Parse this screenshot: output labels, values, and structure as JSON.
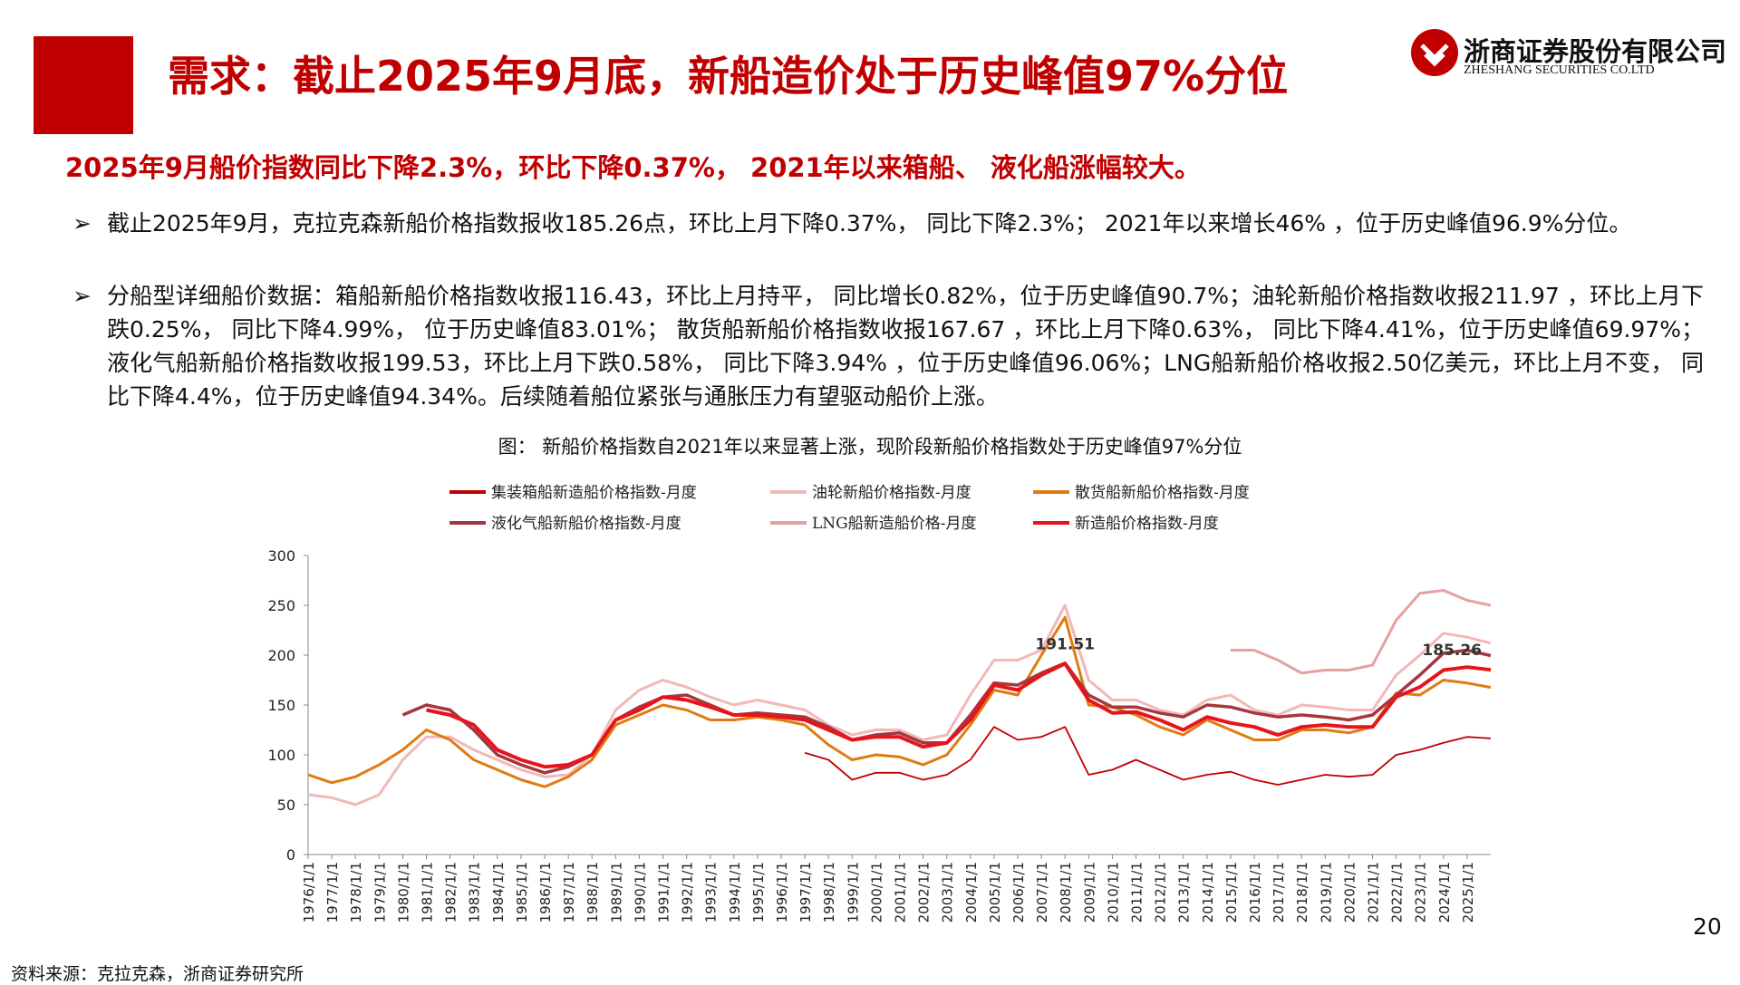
{
  "header": {
    "title": "需求：截止2025年9月底，新船造价处于历史峰值97%分位",
    "logo_cn": "浙商证券股份有限公司",
    "logo_en": "ZHESHANG SECURITIES CO.LTD"
  },
  "subtitle": "2025年9月船价指数同比下降2.3%，环比下降0.37%， 2021年以来箱船、 液化船涨幅较大。",
  "bullets": [
    "截止2025年9月，克拉克森新船价格指数报收185.26点，环比上月下降0.37%， 同比下降2.3%； 2021年以来增长46% ，位于历史峰值96.9%分位。",
    "分船型详细船价数据：箱船新船价格指数收报116.43，环比上月持平， 同比增长0.82%，位于历史峰值90.7%；油轮新船价格指数收报211.97 ，环比上月下跌0.25%， 同比下降4.99%， 位于历史峰值83.01%； 散货船新船价格指数收报167.67 ，环比上月下降0.63%， 同比下降4.41%，位于历史峰值69.97%；液化气船新船价格指数收报199.53，环比上月下跌0.58%， 同比下降3.94% ，位于历史峰值96.06%；LNG船新船价格收报2.50亿美元，环比上月不变， 同比下降4.4%，位于历史峰值94.34%。后续随着船位紧张与通胀压力有望驱动船价上涨。"
  ],
  "source": "资料来源：克拉克森，浙商证券研究所",
  "page_number": "20",
  "chart_data": {
    "type": "line",
    "title": "图： 新船价格指数自2021年以来显著上涨，现阶段新船价格指数处于历史峰值97%分位",
    "categories": [
      "1976/1/1",
      "1977/1/1",
      "1978/1/1",
      "1979/1/1",
      "1980/1/1",
      "1981/1/1",
      "1982/1/1",
      "1983/1/1",
      "1984/1/1",
      "1985/1/1",
      "1986/1/1",
      "1987/1/1",
      "1988/1/1",
      "1989/1/1",
      "1990/1/1",
      "1991/1/1",
      "1992/1/1",
      "1993/1/1",
      "1994/1/1",
      "1995/1/1",
      "1996/1/1",
      "1997/1/1",
      "1998/1/1",
      "1999/1/1",
      "2000/1/1",
      "2001/1/1",
      "2002/1/1",
      "2003/1/1",
      "2004/1/1",
      "2005/1/1",
      "2006/1/1",
      "2007/1/1",
      "2008/1/1",
      "2009/1/1",
      "2010/1/1",
      "2011/1/1",
      "2012/1/1",
      "2013/1/1",
      "2014/1/1",
      "2015/1/1",
      "2016/1/1",
      "2017/1/1",
      "2018/1/1",
      "2019/1/1",
      "2020/1/1",
      "2021/1/1",
      "2022/1/1",
      "2023/1/1",
      "2024/1/1",
      "2025/1/1",
      null
    ],
    "series": [
      {
        "name": "集装箱船新造船价格指数-月度",
        "color": "#c00000",
        "width": 1.8,
        "values": [
          null,
          null,
          null,
          null,
          null,
          null,
          null,
          null,
          null,
          null,
          null,
          null,
          null,
          null,
          null,
          null,
          null,
          null,
          null,
          null,
          null,
          102,
          95,
          75,
          82,
          82,
          75,
          80,
          95,
          128,
          115,
          118,
          128,
          80,
          85,
          95,
          85,
          75,
          80,
          83,
          75,
          70,
          75,
          80,
          78,
          80,
          100,
          105,
          112,
          118,
          116.43
        ]
      },
      {
        "name": "油轮新船价格指数-月度",
        "color": "#f2b8b8",
        "width": 3,
        "values": [
          60,
          57,
          50,
          60,
          95,
          118,
          118,
          105,
          95,
          85,
          78,
          80,
          100,
          145,
          165,
          175,
          168,
          158,
          150,
          155,
          150,
          145,
          130,
          120,
          125,
          125,
          115,
          120,
          160,
          195,
          195,
          205,
          250,
          175,
          155,
          155,
          145,
          140,
          155,
          160,
          145,
          140,
          150,
          148,
          145,
          145,
          180,
          200,
          222,
          218,
          211.97
        ]
      },
      {
        "name": "散货船新船价格指数-月度",
        "color": "#e07b10",
        "width": 3,
        "values": [
          80,
          72,
          78,
          90,
          105,
          125,
          115,
          95,
          85,
          75,
          68,
          78,
          95,
          130,
          140,
          150,
          145,
          135,
          135,
          138,
          135,
          130,
          110,
          95,
          100,
          98,
          90,
          100,
          130,
          165,
          160,
          200,
          238,
          150,
          148,
          140,
          128,
          120,
          135,
          125,
          115,
          115,
          125,
          125,
          122,
          128,
          162,
          160,
          175,
          172,
          167.67
        ]
      },
      {
        "name": "液化气船新船价格指数-月度",
        "color": "#a5373f",
        "width": 3.5,
        "values": [
          null,
          null,
          null,
          null,
          140,
          150,
          145,
          125,
          100,
          90,
          82,
          88,
          100,
          135,
          148,
          158,
          160,
          150,
          140,
          142,
          140,
          138,
          128,
          115,
          120,
          122,
          112,
          112,
          140,
          172,
          170,
          182,
          192,
          160,
          148,
          148,
          142,
          138,
          150,
          148,
          142,
          138,
          140,
          138,
          135,
          140,
          160,
          180,
          202,
          205,
          199.53
        ]
      },
      {
        "name": "LNG船新造船价格-月度",
        "color": "#e3a2a2",
        "width": 3,
        "values": [
          null,
          null,
          null,
          null,
          null,
          null,
          null,
          null,
          null,
          null,
          null,
          null,
          null,
          null,
          null,
          null,
          null,
          null,
          null,
          null,
          null,
          null,
          null,
          null,
          null,
          null,
          null,
          null,
          null,
          null,
          null,
          null,
          null,
          null,
          null,
          null,
          null,
          null,
          null,
          205,
          205,
          195,
          182,
          185,
          185,
          190,
          235,
          262,
          265,
          255,
          250
        ]
      },
      {
        "name": "新造船价格指数-月度",
        "color": "#e8141c",
        "width": 4,
        "values": [
          null,
          null,
          null,
          null,
          null,
          145,
          140,
          130,
          105,
          95,
          88,
          90,
          100,
          135,
          145,
          158,
          155,
          148,
          140,
          140,
          138,
          135,
          125,
          115,
          118,
          118,
          108,
          112,
          135,
          170,
          165,
          180,
          191.51,
          155,
          142,
          143,
          135,
          125,
          138,
          132,
          128,
          120,
          128,
          130,
          128,
          128,
          158,
          168,
          185,
          188,
          185.26
        ],
        "value_labels": [
          null,
          null,
          null,
          null,
          null,
          null,
          null,
          null,
          null,
          null,
          null,
          null,
          null,
          null,
          null,
          null,
          null,
          null,
          null,
          null,
          null,
          null,
          null,
          null,
          null,
          null,
          null,
          null,
          null,
          null,
          null,
          null,
          "191.51",
          null,
          null,
          null,
          null,
          null,
          null,
          null,
          null,
          null,
          null,
          null,
          null,
          null,
          null,
          null,
          null,
          null,
          "185.26"
        ]
      }
    ],
    "ylim": [
      0,
      300
    ],
    "yticks": [
      0,
      50,
      100,
      150,
      200,
      250,
      300
    ],
    "grid": false
  }
}
